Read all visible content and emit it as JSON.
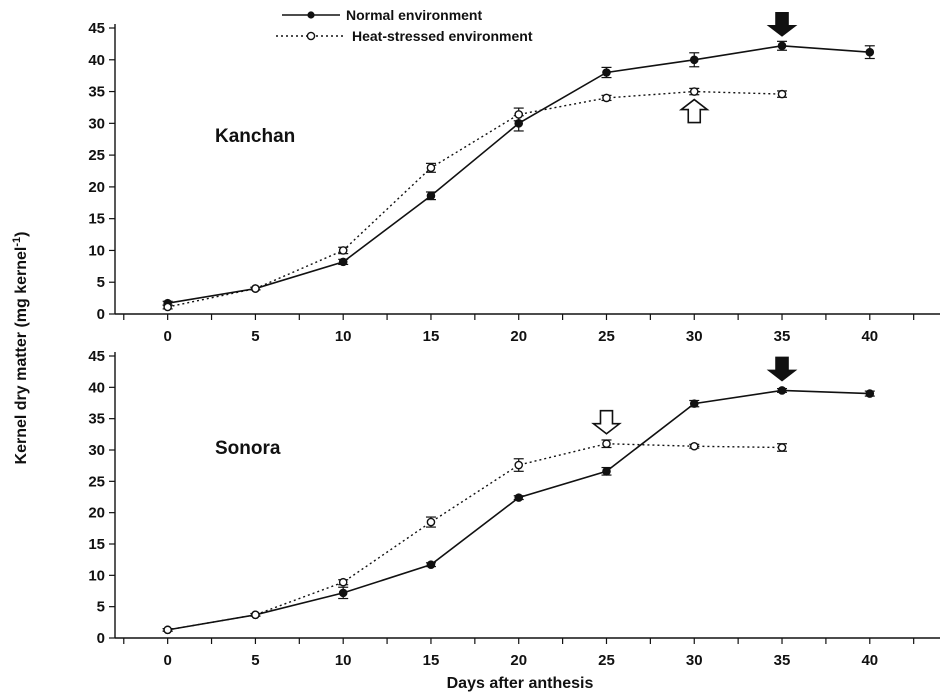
{
  "chart_data": {
    "type": "line",
    "ylabel": "Kernel dry matter (mg kernel",
    "ylabel_sup": "-1",
    "ylabel_tail": ")",
    "xlabel": "Days after anthesis",
    "legend": {
      "placement": "top-center",
      "entries": [
        {
          "label": "Normal environment",
          "marker": "filled-circle",
          "line": "solid"
        },
        {
          "label": "Heat-stressed environment",
          "marker": "open-circle",
          "line": "dotted"
        }
      ]
    },
    "x_ticks": [
      "0",
      "5",
      "10",
      "15",
      "20",
      "25",
      "30",
      "35",
      "40"
    ],
    "y_ticks": [
      "0",
      "5",
      "10",
      "15",
      "20",
      "25",
      "30",
      "35",
      "40",
      "45"
    ],
    "panels": [
      {
        "label": "Kanchan",
        "xlim": [
          -3,
          44
        ],
        "ylim": [
          0,
          45
        ],
        "series": [
          {
            "name": "Normal environment",
            "x": [
              0,
              5,
              10,
              15,
              20,
              25,
              30,
              35,
              40
            ],
            "y": [
              1.7,
              4.0,
              8.2,
              18.6,
              30.0,
              38.0,
              40.0,
              42.2,
              41.2
            ],
            "err": [
              0.3,
              0.2,
              0.4,
              0.6,
              1.2,
              0.8,
              1.1,
              0.7,
              1.0
            ]
          },
          {
            "name": "Heat-stressed environment",
            "x": [
              0,
              5,
              10,
              15,
              20,
              25,
              30,
              35
            ],
            "y": [
              1.1,
              4.0,
              10.0,
              23.0,
              31.4,
              34.0,
              35.0,
              34.6
            ],
            "err": [
              0.3,
              0.2,
              0.5,
              0.7,
              1.0,
              0.4,
              0.5,
              0.5
            ]
          }
        ],
        "arrows": [
          {
            "series": "Normal environment",
            "x": 35,
            "direction": "down",
            "style": "filled"
          },
          {
            "series": "Heat-stressed environment",
            "x": 30,
            "direction": "up",
            "style": "open"
          }
        ]
      },
      {
        "label": "Sonora",
        "xlim": [
          -3,
          44
        ],
        "ylim": [
          0,
          45
        ],
        "series": [
          {
            "name": "Normal environment",
            "x": [
              0,
              5,
              10,
              15,
              20,
              25,
              30,
              35,
              40
            ],
            "y": [
              1.3,
              3.7,
              7.2,
              11.7,
              22.4,
              26.6,
              37.4,
              39.5,
              39.0
            ],
            "err": [
              0.2,
              0.2,
              0.9,
              0.3,
              0.3,
              0.6,
              0.5,
              0.3,
              0.4
            ]
          },
          {
            "name": "Heat-stressed environment",
            "x": [
              0,
              5,
              10,
              15,
              20,
              25,
              30,
              35
            ],
            "y": [
              1.3,
              3.7,
              8.9,
              18.5,
              27.6,
              31.0,
              30.6,
              30.4
            ],
            "err": [
              0.2,
              0.2,
              0.4,
              0.8,
              1.0,
              0.6,
              0.3,
              0.6
            ]
          }
        ],
        "arrows": [
          {
            "series": "Normal environment",
            "x": 35,
            "direction": "down",
            "style": "filled"
          },
          {
            "series": "Heat-stressed environment",
            "x": 25,
            "direction": "down",
            "style": "open"
          }
        ]
      }
    ]
  }
}
